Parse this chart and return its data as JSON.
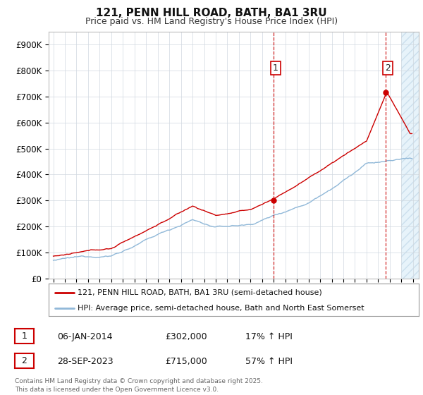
{
  "title": "121, PENN HILL ROAD, BATH, BA1 3RU",
  "subtitle": "Price paid vs. HM Land Registry's House Price Index (HPI)",
  "bg_color": "#ffffff",
  "grid_color": "#d0d8e0",
  "legend1_label": "121, PENN HILL ROAD, BATH, BA1 3RU (semi-detached house)",
  "legend2_label": "HPI: Average price, semi-detached house, Bath and North East Somerset",
  "red_line_color": "#cc0000",
  "blue_line_color": "#90b8d8",
  "sale1_date": "06-JAN-2014",
  "sale1_price": "£302,000",
  "sale1_hpi": "17% ↑ HPI",
  "sale2_date": "28-SEP-2023",
  "sale2_price": "£715,000",
  "sale2_hpi": "57% ↑ HPI",
  "footer": "Contains HM Land Registry data © Crown copyright and database right 2025.\nThis data is licensed under the Open Government Licence v3.0.",
  "ylim": [
    0,
    950000
  ],
  "year_start": 1995,
  "year_end": 2026
}
